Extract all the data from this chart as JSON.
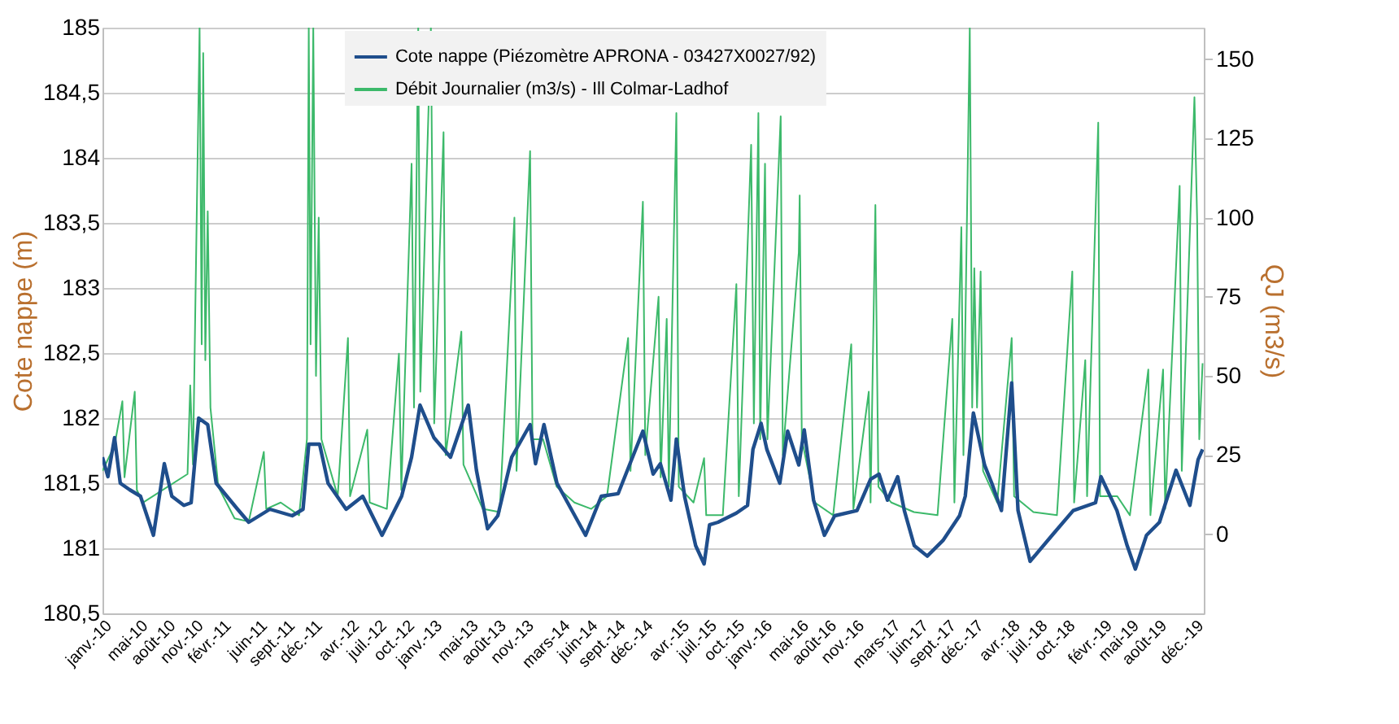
{
  "chart_data": {
    "type": "line",
    "xlabel": null,
    "ylabel": "Cote nappe (m)",
    "y2label": "QJ (m3/s)",
    "xlim": [
      "2010-01-01",
      "2020-01-01"
    ],
    "xticks": [
      {
        "value": "2010-01-01",
        "label": "janv.-10"
      },
      {
        "value": "2010-05-01",
        "label": "mai-10"
      },
      {
        "value": "2010-08-01",
        "label": "août-10"
      },
      {
        "value": "2010-11-01",
        "label": "nov.-10"
      },
      {
        "value": "2011-02-01",
        "label": "févr.-11"
      },
      {
        "value": "2011-06-01",
        "label": "juin-11"
      },
      {
        "value": "2011-09-01",
        "label": "sept.-11"
      },
      {
        "value": "2011-12-01",
        "label": "déc.-11"
      },
      {
        "value": "2012-04-01",
        "label": "avr.-12"
      },
      {
        "value": "2012-07-01",
        "label": "juil.-12"
      },
      {
        "value": "2012-10-01",
        "label": "oct.-12"
      },
      {
        "value": "2013-01-01",
        "label": "janv.-13"
      },
      {
        "value": "2013-05-01",
        "label": "mai-13"
      },
      {
        "value": "2013-08-01",
        "label": "août-13"
      },
      {
        "value": "2013-11-01",
        "label": "nov.-13"
      },
      {
        "value": "2014-03-01",
        "label": "mars-14"
      },
      {
        "value": "2014-06-01",
        "label": "juin-14"
      },
      {
        "value": "2014-09-01",
        "label": "sept.-14"
      },
      {
        "value": "2014-12-01",
        "label": "déc.-14"
      },
      {
        "value": "2015-04-01",
        "label": "avr.-15"
      },
      {
        "value": "2015-07-01",
        "label": "juil.-15"
      },
      {
        "value": "2015-10-01",
        "label": "oct.-15"
      },
      {
        "value": "2016-01-01",
        "label": "janv.-16"
      },
      {
        "value": "2016-05-01",
        "label": "mai-16"
      },
      {
        "value": "2016-08-01",
        "label": "août-16"
      },
      {
        "value": "2016-11-01",
        "label": "nov.-16"
      },
      {
        "value": "2017-03-01",
        "label": "mars-17"
      },
      {
        "value": "2017-06-01",
        "label": "juin-17"
      },
      {
        "value": "2017-09-01",
        "label": "sept.-17"
      },
      {
        "value": "2017-12-01",
        "label": "déc.-17"
      },
      {
        "value": "2018-04-01",
        "label": "avr.-18"
      },
      {
        "value": "2018-07-01",
        "label": "juil.-18"
      },
      {
        "value": "2018-10-01",
        "label": "oct.-18"
      },
      {
        "value": "2019-02-01",
        "label": "févr.-19"
      },
      {
        "value": "2019-05-01",
        "label": "mai-19"
      },
      {
        "value": "2019-08-01",
        "label": "août-19"
      },
      {
        "value": "2019-12-01",
        "label": "déc.-19"
      }
    ],
    "ylim": [
      180.5,
      185
    ],
    "yticks": [
      {
        "value": 180.5,
        "label": "180,5"
      },
      181,
      {
        "value": 181.5,
        "label": "181,5"
      },
      182,
      {
        "value": 182.5,
        "label": "182,5"
      },
      183,
      {
        "value": 183.5,
        "label": "183,5"
      },
      184,
      {
        "value": 184.5,
        "label": "184,5"
      },
      185
    ],
    "y2lim": [
      -25,
      160
    ],
    "y2ticks": [
      0,
      25,
      50,
      75,
      100,
      125,
      150
    ],
    "grid": "y",
    "legend": "top",
    "line_style": "solid",
    "marker": "none",
    "series": [
      {
        "name": "Cote nappe (Piézomètre APRONA - 03427X0027/92)",
        "color": "#1f4e8c",
        "axis": "y",
        "x": [
          "2010-01-01",
          "2010-01-19",
          "2010-02-10",
          "2010-03-01",
          "2010-04-01",
          "2010-05-07",
          "2010-06-19",
          "2010-07-25",
          "2010-08-19",
          "2010-09-28",
          "2010-10-22",
          "2010-11-16",
          "2010-12-16",
          "2011-01-13",
          "2011-03-25",
          "2011-05-01",
          "2011-07-10",
          "2011-09-22",
          "2011-10-28",
          "2011-11-16",
          "2011-12-22",
          "2012-01-19",
          "2012-03-19",
          "2012-05-13",
          "2012-07-16",
          "2012-09-19",
          "2012-10-22",
          "2012-11-19",
          "2013-01-04",
          "2013-02-28",
          "2013-04-28",
          "2013-05-25",
          "2013-07-01",
          "2013-08-04",
          "2013-09-19",
          "2013-11-19",
          "2013-12-07",
          "2014-01-04",
          "2014-02-16",
          "2014-05-22",
          "2014-07-13",
          "2014-09-07",
          "2014-11-28",
          "2015-01-01",
          "2015-01-25",
          "2015-03-01",
          "2015-03-19",
          "2015-04-16",
          "2015-05-22",
          "2015-06-19",
          "2015-07-07",
          "2015-08-04",
          "2015-10-04",
          "2015-11-10",
          "2015-11-28",
          "2015-12-25",
          "2016-01-13",
          "2016-02-25",
          "2016-03-22",
          "2016-04-28",
          "2016-05-16",
          "2016-06-16",
          "2016-07-22",
          "2016-08-25",
          "2016-11-07",
          "2016-12-22",
          "2017-01-19",
          "2017-02-16",
          "2017-03-22",
          "2017-04-13",
          "2017-05-16",
          "2017-06-28",
          "2017-08-19",
          "2017-10-13",
          "2017-11-01",
          "2017-11-28",
          "2018-01-04",
          "2018-01-28",
          "2018-03-01",
          "2018-04-04",
          "2018-04-25",
          "2018-06-04",
          "2018-08-16",
          "2018-10-25",
          "2019-01-07",
          "2019-01-25",
          "2019-03-19",
          "2019-04-22",
          "2019-05-19",
          "2019-06-25",
          "2019-08-07",
          "2019-10-01",
          "2019-11-16",
          "2019-12-13",
          "2019-12-28"
        ],
        "values": [
          181.7,
          181.55,
          181.85,
          181.5,
          181.45,
          181.4,
          181.1,
          181.65,
          181.4,
          181.33,
          181.35,
          182.0,
          181.95,
          181.5,
          181.3,
          181.2,
          181.3,
          181.25,
          181.3,
          181.8,
          181.8,
          181.5,
          181.3,
          181.4,
          181.1,
          181.4,
          181.7,
          182.1,
          181.85,
          181.7,
          182.1,
          181.6,
          181.15,
          181.25,
          181.7,
          181.95,
          181.65,
          181.95,
          181.5,
          181.1,
          181.4,
          181.42,
          181.9,
          181.57,
          181.65,
          181.37,
          181.84,
          181.39,
          181.02,
          180.88,
          181.18,
          181.2,
          181.27,
          181.33,
          181.76,
          181.96,
          181.76,
          181.5,
          181.9,
          181.64,
          181.91,
          181.37,
          181.1,
          181.25,
          181.29,
          181.53,
          181.57,
          181.37,
          181.55,
          181.29,
          181.02,
          180.94,
          181.06,
          181.25,
          181.4,
          182.04,
          181.64,
          181.5,
          181.29,
          182.27,
          181.29,
          180.9,
          181.1,
          181.29,
          181.35,
          181.55,
          181.29,
          181.02,
          180.84,
          181.1,
          181.2,
          181.6,
          181.33,
          181.68,
          181.76
        ]
      },
      {
        "name": "Débit Journalier (m3/s) - Ill Colmar-Ladhof",
        "color": "#3cb96a",
        "axis": "y2",
        "x": [
          "2010-01-01",
          "2010-02-10",
          "2010-03-08",
          "2010-03-15",
          "2010-04-18",
          "2010-04-25",
          "2010-05-15",
          "2010-10-10",
          "2010-10-19",
          "2010-10-28",
          "2010-11-19",
          "2010-11-26",
          "2010-12-01",
          "2010-12-08",
          "2010-12-16",
          "2010-12-25",
          "2011-01-20",
          "2011-03-15",
          "2011-05-01",
          "2011-06-20",
          "2011-06-28",
          "2011-08-15",
          "2011-10-15",
          "2011-11-10",
          "2011-11-16",
          "2011-11-22",
          "2011-12-01",
          "2011-12-10",
          "2011-12-19",
          "2011-12-28",
          "2012-02-20",
          "2012-03-25",
          "2012-04-01",
          "2012-05-28",
          "2012-06-05",
          "2012-08-01",
          "2012-09-10",
          "2012-09-18",
          "2012-10-22",
          "2012-10-30",
          "2012-11-13",
          "2012-11-20",
          "2012-12-25",
          "2013-01-05",
          "2013-02-05",
          "2013-02-12",
          "2013-04-05",
          "2013-04-12",
          "2013-06-15",
          "2013-08-10",
          "2013-09-28",
          "2013-10-05",
          "2013-11-19",
          "2013-11-27",
          "2014-01-01",
          "2014-02-15",
          "2014-04-15",
          "2014-06-10",
          "2014-08-01",
          "2014-10-10",
          "2014-10-18",
          "2014-11-28",
          "2014-12-06",
          "2015-01-19",
          "2015-01-26",
          "2015-02-15",
          "2015-02-22",
          "2015-03-19",
          "2015-03-27",
          "2015-05-15",
          "2015-06-19",
          "2015-06-26",
          "2015-08-20",
          "2015-10-04",
          "2015-10-12",
          "2015-11-22",
          "2015-12-01",
          "2015-12-16",
          "2015-12-22",
          "2016-01-07",
          "2016-01-15",
          "2016-02-28",
          "2016-03-06",
          "2016-04-28",
          "2016-05-01",
          "2016-05-08",
          "2016-06-20",
          "2016-08-20",
          "2016-10-19",
          "2016-10-26",
          "2016-12-16",
          "2016-12-22",
          "2017-01-07",
          "2017-01-10",
          "2017-01-17",
          "2017-03-01",
          "2017-05-15",
          "2017-08-01",
          "2017-09-19",
          "2017-09-26",
          "2017-10-19",
          "2017-10-26",
          "2017-11-16",
          "2017-11-24",
          "2017-12-01",
          "2017-12-10",
          "2017-12-22",
          "2017-12-30",
          "2018-02-15",
          "2018-04-04",
          "2018-04-12",
          "2018-06-15",
          "2018-09-01",
          "2018-10-22",
          "2018-10-28",
          "2018-12-04",
          "2018-12-10",
          "2019-01-16",
          "2019-01-22",
          "2019-03-20",
          "2019-05-01",
          "2019-07-01",
          "2019-07-08",
          "2019-08-19",
          "2019-08-26",
          "2019-10-13",
          "2019-10-20",
          "2019-12-01",
          "2019-12-10",
          "2019-12-17",
          "2019-12-28"
        ],
        "values": [
          20,
          28,
          42,
          18,
          45,
          14,
          10,
          19,
          47,
          22,
          160,
          60,
          152,
          55,
          102,
          40,
          15,
          5,
          4,
          26,
          8,
          10,
          6,
          30,
          160,
          60,
          160,
          50,
          100,
          30,
          12,
          62,
          12,
          33,
          10,
          8,
          57,
          14,
          117,
          40,
          160,
          45,
          160,
          35,
          127,
          25,
          64,
          22,
          8,
          7,
          100,
          20,
          121,
          30,
          30,
          15,
          10,
          8,
          12,
          62,
          20,
          105,
          25,
          75,
          18,
          68,
          15,
          133,
          15,
          10,
          24,
          6,
          6,
          79,
          12,
          123,
          35,
          133,
          30,
          117,
          30,
          132,
          25,
          89,
          107,
          30,
          10,
          6,
          60,
          8,
          45,
          10,
          104,
          74,
          15,
          10,
          7,
          6,
          68,
          10,
          97,
          25,
          160,
          40,
          84,
          40,
          83,
          20,
          10,
          62,
          12,
          7,
          6,
          83,
          10,
          55,
          12,
          130,
          12,
          12,
          6,
          52,
          6,
          52,
          8,
          110,
          20,
          138,
          99,
          30,
          54
        ]
      }
    ]
  }
}
